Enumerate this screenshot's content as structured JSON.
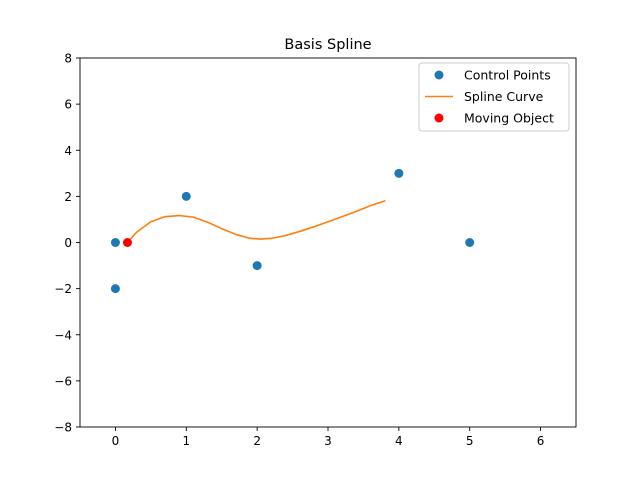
{
  "chart_data": {
    "type": "scatter",
    "title": "Basis Spline",
    "xlabel": "",
    "ylabel": "",
    "xlim": [
      -0.5,
      6.5
    ],
    "ylim": [
      -8,
      8
    ],
    "x_ticks": [
      0,
      1,
      2,
      3,
      4,
      5,
      6
    ],
    "y_ticks": [
      -8,
      -6,
      -4,
      -2,
      0,
      2,
      4,
      6,
      8
    ],
    "grid": false,
    "legend_position": "top-right",
    "series": [
      {
        "name": "Control Points",
        "type": "scatter",
        "color": "#1f77b4",
        "points": [
          {
            "x": 0,
            "y": 0
          },
          {
            "x": 0,
            "y": -2
          },
          {
            "x": 1,
            "y": 2
          },
          {
            "x": 2,
            "y": -1
          },
          {
            "x": 4,
            "y": 3
          },
          {
            "x": 5,
            "y": 0
          }
        ]
      },
      {
        "name": "Spline Curve",
        "type": "line",
        "color": "#ff7f0e",
        "points": [
          {
            "x": 0.17,
            "y": 0.0
          },
          {
            "x": 0.3,
            "y": 0.45
          },
          {
            "x": 0.5,
            "y": 0.9
          },
          {
            "x": 0.7,
            "y": 1.12
          },
          {
            "x": 0.9,
            "y": 1.17
          },
          {
            "x": 1.1,
            "y": 1.1
          },
          {
            "x": 1.3,
            "y": 0.88
          },
          {
            "x": 1.5,
            "y": 0.6
          },
          {
            "x": 1.7,
            "y": 0.35
          },
          {
            "x": 1.9,
            "y": 0.18
          },
          {
            "x": 2.05,
            "y": 0.15
          },
          {
            "x": 2.2,
            "y": 0.18
          },
          {
            "x": 2.4,
            "y": 0.3
          },
          {
            "x": 2.6,
            "y": 0.48
          },
          {
            "x": 2.8,
            "y": 0.68
          },
          {
            "x": 3.0,
            "y": 0.9
          },
          {
            "x": 3.2,
            "y": 1.12
          },
          {
            "x": 3.4,
            "y": 1.35
          },
          {
            "x": 3.6,
            "y": 1.6
          },
          {
            "x": 3.8,
            "y": 1.8
          }
        ]
      },
      {
        "name": "Moving Object",
        "type": "scatter",
        "color": "#ff0000",
        "points": [
          {
            "x": 0.17,
            "y": 0.0
          }
        ]
      }
    ]
  }
}
